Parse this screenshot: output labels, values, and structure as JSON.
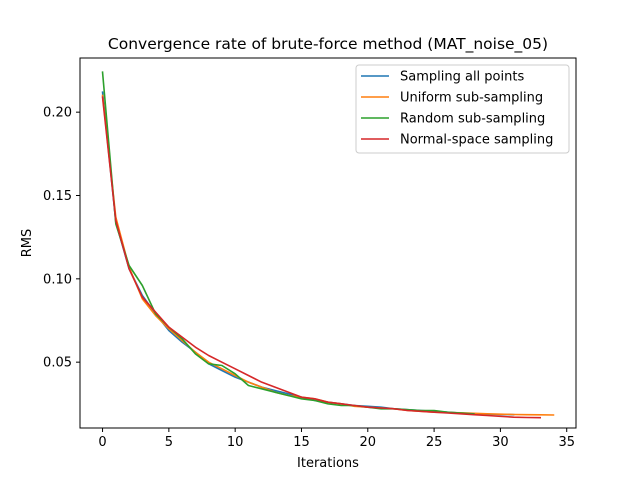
{
  "chart_data": {
    "type": "line",
    "title": "Convergence rate of brute-force method (MAT_noise_05)",
    "xlabel": "Iterations",
    "ylabel": "RMS",
    "xlim": [
      -1.7,
      35.7
    ],
    "ylim": [
      0.0105,
      0.2325
    ],
    "xticks": [
      0,
      5,
      10,
      15,
      20,
      25,
      30,
      35
    ],
    "yticks": [
      0.05,
      0.1,
      0.15,
      0.2
    ],
    "ytick_labels": [
      "0.05",
      "0.10",
      "0.15",
      "0.20"
    ],
    "grid": false,
    "legend_position": "upper right",
    "series": [
      {
        "name": "Sampling all points",
        "color": "#1f77b4",
        "x": [
          0,
          1,
          2,
          3,
          4,
          5,
          6,
          7,
          8,
          9,
          10,
          11,
          12,
          13,
          14,
          15,
          16,
          17,
          18,
          19,
          20,
          21,
          22,
          23,
          24,
          25,
          26,
          27,
          28,
          29,
          30,
          31
        ],
        "y": [
          0.212,
          0.134,
          0.106,
          0.09,
          0.079,
          0.069,
          0.062,
          0.056,
          0.049,
          0.045,
          0.041,
          0.038,
          0.035,
          0.033,
          0.031,
          0.029,
          0.027,
          0.026,
          0.025,
          0.024,
          0.0235,
          0.023,
          0.022,
          0.0215,
          0.021,
          0.0205,
          0.02,
          0.0195,
          0.019,
          0.0188,
          0.0186,
          0.0185
        ]
      },
      {
        "name": "Uniform sub-sampling",
        "color": "#ff7f0e",
        "x": [
          0,
          1,
          2,
          3,
          4,
          5,
          6,
          7,
          8,
          9,
          10,
          11,
          12,
          13,
          14,
          15,
          16,
          17,
          18,
          19,
          20,
          21,
          22,
          23,
          24,
          25,
          26,
          27,
          28,
          29,
          30,
          31,
          32,
          33,
          34
        ],
        "y": [
          0.21,
          0.137,
          0.107,
          0.088,
          0.078,
          0.07,
          0.063,
          0.056,
          0.05,
          0.046,
          0.042,
          0.038,
          0.035,
          0.032,
          0.03,
          0.029,
          0.028,
          0.026,
          0.025,
          0.0235,
          0.023,
          0.0225,
          0.022,
          0.021,
          0.0205,
          0.02,
          0.0198,
          0.0196,
          0.0193,
          0.019,
          0.0188,
          0.0186,
          0.0185,
          0.0184,
          0.0183
        ]
      },
      {
        "name": "Random sub-sampling",
        "color": "#2ca02c",
        "x": [
          0,
          1,
          2,
          3,
          4,
          5,
          6,
          7,
          8,
          9,
          10,
          11,
          12,
          13,
          14,
          15,
          16,
          17,
          18,
          19,
          20,
          21,
          22,
          23,
          24,
          25,
          26,
          27,
          28
        ],
        "y": [
          0.224,
          0.133,
          0.108,
          0.096,
          0.079,
          0.071,
          0.064,
          0.055,
          0.049,
          0.048,
          0.043,
          0.036,
          0.034,
          0.032,
          0.03,
          0.028,
          0.027,
          0.025,
          0.024,
          0.024,
          0.023,
          0.022,
          0.022,
          0.0215,
          0.021,
          0.021,
          0.02,
          0.0195,
          0.019
        ]
      },
      {
        "name": "Normal-space sampling",
        "color": "#d62728",
        "x": [
          0,
          1,
          2,
          3,
          4,
          5,
          6,
          7,
          8,
          9,
          10,
          11,
          12,
          13,
          14,
          15,
          16,
          17,
          18,
          19,
          20,
          21,
          22,
          23,
          24,
          25,
          26,
          27,
          28,
          29,
          30,
          31,
          32,
          33
        ],
        "y": [
          0.209,
          0.135,
          0.106,
          0.089,
          0.08,
          0.071,
          0.065,
          0.059,
          0.054,
          0.05,
          0.046,
          0.042,
          0.038,
          0.035,
          0.032,
          0.029,
          0.028,
          0.026,
          0.025,
          0.024,
          0.023,
          0.0225,
          0.022,
          0.021,
          0.0205,
          0.02,
          0.0195,
          0.019,
          0.0185,
          0.018,
          0.0175,
          0.017,
          0.0168,
          0.0167
        ]
      }
    ]
  }
}
